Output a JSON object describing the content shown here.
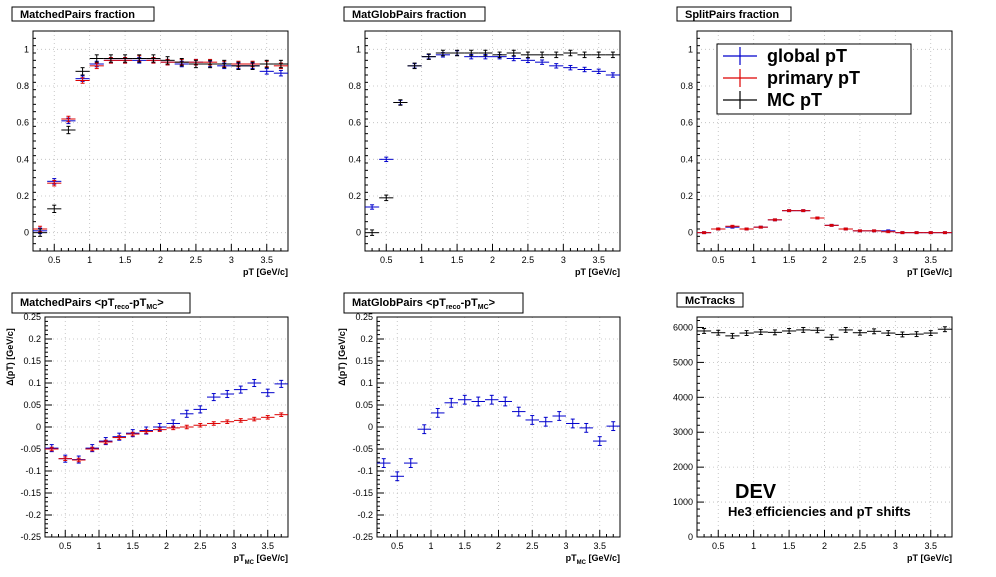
{
  "colors": {
    "global": "#0000cc",
    "primary": "#dd0000",
    "mc": "#000000",
    "grid": "#bbbbbb"
  },
  "legend_entries": [
    "global pT",
    "primary pT",
    "MC pT"
  ],
  "note": {
    "line1": "DEV",
    "line2": "He3 efficiencies and pT shifts"
  },
  "chart_data": [
    {
      "type": "scatter",
      "title": "MatchedPairs fraction",
      "xlabel": "pT [GeV/c]",
      "xlim": [
        0.2,
        3.8
      ],
      "ylim": [
        -0.1,
        1.1
      ],
      "xticks": [
        0.5,
        1,
        1.5,
        2,
        2.5,
        3,
        3.5
      ],
      "xtick_labels": [
        "0.5",
        "1",
        "1.5",
        "2",
        "2.5",
        "3",
        "3.5"
      ],
      "yticks": [
        0,
        0.2,
        0.4,
        0.6,
        0.8,
        1
      ],
      "ytick_labels": [
        "0",
        "0.2",
        "0.4",
        "0.6",
        "0.8",
        "1"
      ],
      "grid": true,
      "x": [
        0.3,
        0.5,
        0.7,
        0.9,
        1.1,
        1.3,
        1.5,
        1.7,
        1.9,
        2.1,
        2.3,
        2.5,
        2.7,
        2.9,
        3.1,
        3.3,
        3.5,
        3.7
      ],
      "series": [
        {
          "key": "global",
          "values": [
            0.01,
            0.28,
            0.61,
            0.84,
            0.92,
            0.94,
            0.94,
            0.94,
            0.94,
            0.93,
            0.92,
            0.93,
            0.92,
            0.91,
            0.91,
            0.91,
            0.88,
            0.87
          ],
          "yerr": 0.015
        },
        {
          "key": "primary",
          "values": [
            0.02,
            0.27,
            0.62,
            0.83,
            0.91,
            0.94,
            0.94,
            0.95,
            0.94,
            0.93,
            0.93,
            0.93,
            0.93,
            0.92,
            0.92,
            0.92,
            0.92,
            0.91
          ],
          "yerr": 0.015
        },
        {
          "key": "mc",
          "values": [
            0.0,
            0.13,
            0.56,
            0.88,
            0.95,
            0.95,
            0.95,
            0.95,
            0.95,
            0.94,
            0.93,
            0.92,
            0.92,
            0.92,
            0.91,
            0.91,
            0.92,
            0.92
          ],
          "yerr": 0.02
        }
      ]
    },
    {
      "type": "scatter",
      "title": "MatGlobPairs fraction",
      "xlabel": "pT [GeV/c]",
      "xlim": [
        0.2,
        3.8
      ],
      "ylim": [
        -0.1,
        1.1
      ],
      "xticks": [
        0.5,
        1,
        1.5,
        2,
        2.5,
        3,
        3.5
      ],
      "xtick_labels": [
        "0.5",
        "1",
        "1.5",
        "2",
        "2.5",
        "3",
        "3.5"
      ],
      "yticks": [
        0,
        0.2,
        0.4,
        0.6,
        0.8,
        1
      ],
      "ytick_labels": [
        "0",
        "0.2",
        "0.4",
        "0.6",
        "0.8",
        "1"
      ],
      "grid": true,
      "x": [
        0.3,
        0.5,
        0.7,
        0.9,
        1.1,
        1.3,
        1.5,
        1.7,
        1.9,
        2.1,
        2.3,
        2.5,
        2.7,
        2.9,
        3.1,
        3.3,
        3.5,
        3.7
      ],
      "series": [
        {
          "key": "global",
          "values": [
            0.14,
            0.4,
            0.71,
            0.91,
            0.96,
            0.97,
            0.98,
            0.96,
            0.96,
            0.96,
            0.95,
            0.94,
            0.93,
            0.91,
            0.9,
            0.89,
            0.88,
            0.86
          ],
          "yerr": 0.012
        },
        {
          "key": "mc",
          "values": [
            0.0,
            0.19,
            0.71,
            0.91,
            0.96,
            0.98,
            0.98,
            0.98,
            0.98,
            0.97,
            0.98,
            0.97,
            0.97,
            0.97,
            0.98,
            0.97,
            0.97,
            0.97
          ],
          "yerr": 0.015
        }
      ]
    },
    {
      "type": "scatter",
      "title": "SplitPairs fraction",
      "xlabel": "pT [GeV/c]",
      "xlim": [
        0.2,
        3.8
      ],
      "ylim": [
        -0.1,
        1.1
      ],
      "xticks": [
        0.5,
        1,
        1.5,
        2,
        2.5,
        3,
        3.5
      ],
      "xtick_labels": [
        "0.5",
        "1",
        "1.5",
        "2",
        "2.5",
        "3",
        "3.5"
      ],
      "yticks": [
        0,
        0.2,
        0.4,
        0.6,
        0.8,
        1
      ],
      "ytick_labels": [
        "0",
        "0.2",
        "0.4",
        "0.6",
        "0.8",
        "1"
      ],
      "grid": true,
      "legend": true,
      "x": [
        0.3,
        0.5,
        0.7,
        0.9,
        1.1,
        1.3,
        1.5,
        1.7,
        1.9,
        2.1,
        2.3,
        2.5,
        2.7,
        2.9,
        3.1,
        3.3,
        3.5,
        3.7
      ],
      "series": [
        {
          "key": "global",
          "values": [
            0.0,
            0.02,
            0.03,
            0.02,
            0.03,
            0.07,
            0.12,
            0.12,
            0.08,
            0.04,
            0.02,
            0.01,
            0.01,
            0.01,
            0.0,
            0.0,
            0.0,
            0.0
          ],
          "yerr": 0.005
        },
        {
          "key": "primary",
          "values": [
            0.0,
            0.02,
            0.035,
            0.02,
            0.03,
            0.07,
            0.12,
            0.12,
            0.08,
            0.04,
            0.02,
            0.01,
            0.01,
            0.005,
            0.0,
            0.0,
            0.0,
            0.0
          ],
          "yerr": 0.005
        }
      ]
    },
    {
      "type": "scatter",
      "title": "MatchedPairs <pT",
      "title_sub1": "reco",
      "title_mid": "-pT",
      "title_sub2": "MC",
      "title_end": ">",
      "ylabel": "Δ(pT) [GeV/c]",
      "xlabel": "pT",
      "xlabel_sub": "MC",
      "xlabel_end": " [GeV/c]",
      "xlim": [
        0.2,
        3.8
      ],
      "ylim": [
        -0.25,
        0.25
      ],
      "xticks": [
        0.5,
        1,
        1.5,
        2,
        2.5,
        3,
        3.5
      ],
      "xtick_labels": [
        "0.5",
        "1",
        "1.5",
        "2",
        "2.5",
        "3",
        "3.5"
      ],
      "yticks": [
        -0.25,
        -0.2,
        -0.15,
        -0.1,
        -0.05,
        0,
        0.05,
        0.1,
        0.15,
        0.2,
        0.25
      ],
      "ytick_labels": [
        "-0.25",
        "-0.2",
        "-0.15",
        "-0.1",
        "-0.05",
        "0",
        "0.05",
        "0.1",
        "0.15",
        "0.2",
        "0.25"
      ],
      "grid": true,
      "x": [
        0.3,
        0.5,
        0.7,
        0.9,
        1.1,
        1.3,
        1.5,
        1.7,
        1.9,
        2.1,
        2.3,
        2.5,
        2.7,
        2.9,
        3.1,
        3.3,
        3.5,
        3.7
      ],
      "series": [
        {
          "key": "global",
          "values": [
            -0.048,
            -0.072,
            -0.074,
            -0.048,
            -0.032,
            -0.022,
            -0.014,
            -0.008,
            0.0,
            0.008,
            0.03,
            0.04,
            0.068,
            0.075,
            0.085,
            0.1,
            0.078,
            0.098
          ],
          "yerr": 0.008
        },
        {
          "key": "primary",
          "values": [
            -0.05,
            -0.072,
            -0.075,
            -0.05,
            -0.034,
            -0.024,
            -0.016,
            -0.01,
            -0.006,
            -0.002,
            0.0,
            0.004,
            0.008,
            0.012,
            0.015,
            0.018,
            0.022,
            0.028
          ],
          "yerr": 0.004
        }
      ]
    },
    {
      "type": "scatter",
      "title": "MatGlobPairs <pT",
      "title_sub1": "reco",
      "title_mid": "-pT",
      "title_sub2": "MC",
      "title_end": ">",
      "ylabel": "Δ(pT) [GeV/c]",
      "xlabel": "pT",
      "xlabel_sub": "MC",
      "xlabel_end": " [GeV/c]",
      "xlim": [
        0.2,
        3.8
      ],
      "ylim": [
        -0.25,
        0.25
      ],
      "xticks": [
        0.5,
        1,
        1.5,
        2,
        2.5,
        3,
        3.5
      ],
      "xtick_labels": [
        "0.5",
        "1",
        "1.5",
        "2",
        "2.5",
        "3",
        "3.5"
      ],
      "yticks": [
        -0.25,
        -0.2,
        -0.15,
        -0.1,
        -0.05,
        0,
        0.05,
        0.1,
        0.15,
        0.2,
        0.25
      ],
      "ytick_labels": [
        "-0.25",
        "-0.2",
        "-0.15",
        "-0.1",
        "-0.05",
        "0",
        "0.05",
        "0.1",
        "0.15",
        "0.2",
        "0.25"
      ],
      "grid": true,
      "x": [
        0.3,
        0.5,
        0.7,
        0.9,
        1.1,
        1.3,
        1.5,
        1.7,
        1.9,
        2.1,
        2.3,
        2.5,
        2.7,
        2.9,
        3.1,
        3.3,
        3.5,
        3.7
      ],
      "series": [
        {
          "key": "global",
          "values": [
            -0.082,
            -0.112,
            -0.082,
            -0.005,
            0.032,
            0.055,
            0.062,
            0.058,
            0.062,
            0.058,
            0.035,
            0.016,
            0.012,
            0.025,
            0.008,
            -0.002,
            -0.032,
            0.002
          ],
          "yerr": 0.01
        }
      ]
    },
    {
      "type": "scatter",
      "title": "McTracks",
      "xlabel": "pT [GeV/c]",
      "xlim": [
        0.2,
        3.8
      ],
      "ylim": [
        0,
        6300
      ],
      "xticks": [
        0.5,
        1,
        1.5,
        2,
        2.5,
        3,
        3.5
      ],
      "xtick_labels": [
        "0.5",
        "1",
        "1.5",
        "2",
        "2.5",
        "3",
        "3.5"
      ],
      "yticks": [
        0,
        1000,
        2000,
        3000,
        4000,
        5000,
        6000
      ],
      "ytick_labels": [
        "0",
        "1000",
        "2000",
        "3000",
        "4000",
        "5000",
        "6000"
      ],
      "grid": true,
      "note": true,
      "x": [
        0.3,
        0.5,
        0.7,
        0.9,
        1.1,
        1.3,
        1.5,
        1.7,
        1.9,
        2.1,
        2.3,
        2.5,
        2.7,
        2.9,
        3.1,
        3.3,
        3.5,
        3.7
      ],
      "series": [
        {
          "key": "mc",
          "values": [
            5900,
            5850,
            5760,
            5840,
            5870,
            5860,
            5900,
            5930,
            5920,
            5720,
            5930,
            5850,
            5890,
            5840,
            5800,
            5810,
            5840,
            5950
          ],
          "yerr": 70
        }
      ]
    }
  ]
}
